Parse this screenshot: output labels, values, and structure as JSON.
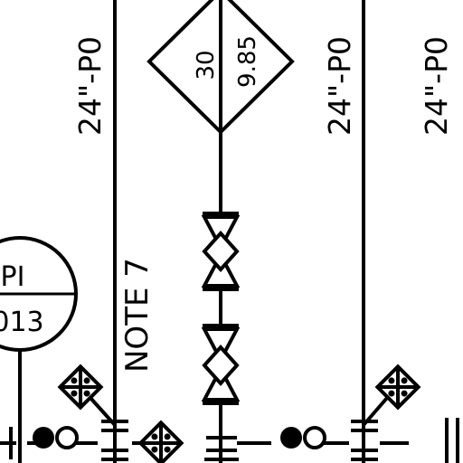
{
  "drawing": {
    "line_labels": {
      "line_a": "24\"-P0",
      "line_b": "24\"-P0",
      "line_c": "24\"-P0"
    },
    "note": "NOTE 7",
    "instrument": {
      "tag_type": "PI",
      "tag_number": "013"
    },
    "diamond": {
      "top_value": "30",
      "bottom_value": "9.85"
    },
    "colors": {
      "ink": "#000000",
      "paper": "#ffffff"
    }
  }
}
